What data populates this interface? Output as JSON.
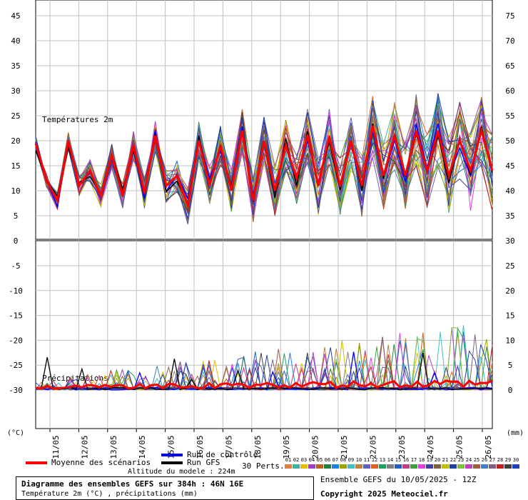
{
  "chart_data": {
    "type": "line",
    "panels": [
      {
        "name": "Températures 2m",
        "left_axis": {
          "ticks": [
            45,
            40,
            35,
            30,
            25,
            20,
            15,
            10,
            5,
            0
          ]
        },
        "right_axis": {
          "ticks": [
            75,
            70,
            65,
            60,
            55,
            50,
            45,
            40,
            35,
            30
          ]
        }
      },
      {
        "name": "Précipitations",
        "left_axis": {
          "ticks": [
            -5,
            -10,
            -15,
            -20,
            -25,
            -30
          ]
        },
        "right_axis": {
          "ticks": [
            25,
            20,
            15,
            10,
            5,
            0
          ]
        }
      }
    ],
    "x_dates": [
      "11/05",
      "12/05",
      "13/05",
      "14/05",
      "15/05",
      "16/05",
      "17/05",
      "18/05",
      "19/05",
      "20/05",
      "21/05",
      "22/05",
      "23/05",
      "24/05",
      "25/05",
      "26/05"
    ],
    "left_unit": "(°C)",
    "right_unit": "(mm)",
    "temp_mean": [
      19.5,
      12,
      8,
      20,
      11,
      14,
      9,
      17,
      9,
      19,
      9.5,
      21,
      11,
      13,
      7,
      20,
      11,
      19,
      10,
      22,
      8,
      20,
      10,
      19,
      12.5,
      21,
      11,
      21,
      11,
      20,
      11,
      23,
      13,
      21,
      13,
      22,
      14,
      22,
      13,
      20,
      14,
      22,
      14
    ]
  },
  "legend": {
    "mean_label": "Moyenne des scénarios",
    "control_label": "Run de contrôle",
    "gfs_label": "Run GFS",
    "perts_label": "30 Perts.",
    "pert_numbers": [
      "01",
      "02",
      "03",
      "04",
      "05",
      "06",
      "07",
      "08",
      "09",
      "10",
      "11",
      "12",
      "13",
      "14",
      "15",
      "16",
      "17",
      "18",
      "19",
      "20",
      "21",
      "22",
      "23",
      "24",
      "25",
      "26",
      "27",
      "28",
      "29",
      "30"
    ],
    "pert_colors": [
      "#e08040",
      "#40b0a0",
      "#e0c000",
      "#a040c0",
      "#c06020",
      "#208040",
      "#2080e0",
      "#a0a000",
      "#40c0c0",
      "#c08040",
      "#6060c0",
      "#e06020",
      "#20a060",
      "#808080",
      "#2060c0",
      "#c04080",
      "#40a040",
      "#e040e0",
      "#4040a0",
      "#806040",
      "#c0c000",
      "#2040a0",
      "#80c040",
      "#c040c0",
      "#a06040",
      "#4080c0",
      "#806080",
      "#c02020",
      "#404040",
      "#2040c0"
    ],
    "mean_color": "#ff0000",
    "control_color": "#0000ff",
    "gfs_color": "#000000"
  },
  "altitude": "Altitude du modele : 224m",
  "info": {
    "title": "Diagramme des ensembles GEFS sur 384h : 46N 16E",
    "subtitle": "Température 2m (°C) , précipitations (mm)",
    "ensemble": "Ensemble GEFS du 10/05/2025 - 12Z",
    "copyright": "Copyright 2025 Meteociel.fr"
  }
}
